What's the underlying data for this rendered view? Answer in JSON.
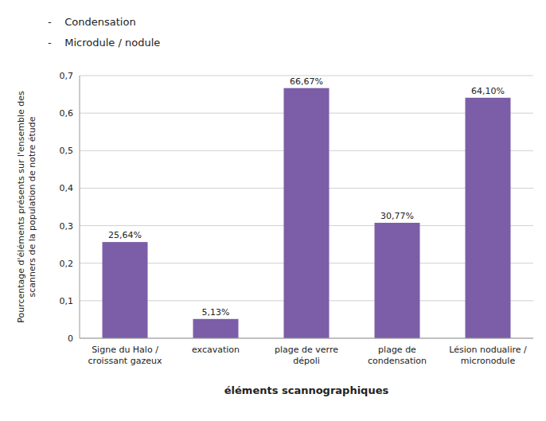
{
  "chart_data": {
    "type": "bar",
    "annotations": [
      "-    Condensation",
      "-    Microdule / nodule"
    ],
    "categories": [
      "Signe du Halo /\ncroissant gazeux",
      "excavation",
      "plage de verre\ndépoli",
      "plage de\ncondensation",
      "Lésion nodualire /\nmicronodule"
    ],
    "values": [
      0.2564,
      0.0513,
      0.6667,
      0.3077,
      0.641
    ],
    "value_labels": [
      "25,64%",
      "5,13%",
      "66,67%",
      "30,77%",
      "64,10%"
    ],
    "color": "#7B5EA7",
    "xlabel": "éléments scannographiques",
    "ylabel": "Pourcentage d'éléments présents sur l'ensemble des\nscanners de la population de notre étude",
    "ylim": [
      0,
      0.7
    ],
    "yticks": [
      0,
      {
        "value": 0.1,
        "label": "0,1"
      },
      {
        "value": 0.2,
        "label": "0,2"
      },
      {
        "value": 0.3,
        "label": "0,3"
      },
      {
        "value": 0.4,
        "label": "0,4"
      },
      {
        "value": 0.5,
        "label": "0,5"
      },
      {
        "value": 0.6,
        "label": "0,6"
      },
      {
        "value": 0.7,
        "label": "0,7"
      }
    ],
    "grid": true,
    "data_labels": true
  }
}
